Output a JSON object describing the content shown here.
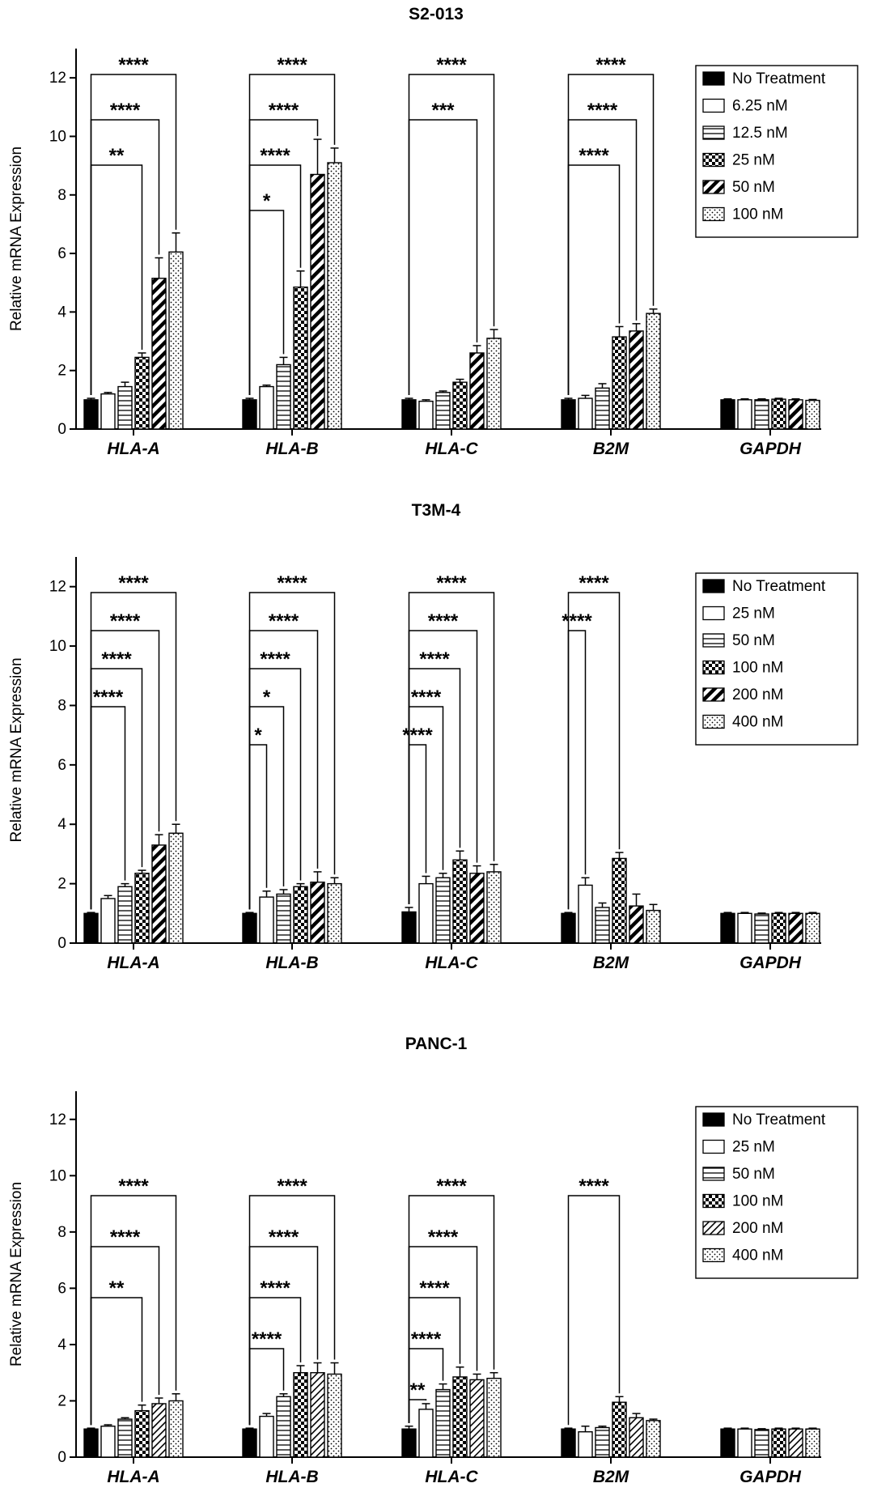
{
  "legend_labels": {
    "s2013": [
      "No Treatment",
      "6.25 nM",
      "12.5 nM",
      "25 nM",
      "50 nM",
      "100 nM"
    ],
    "t3m4": [
      "No Treatment",
      "25 nM",
      "50 nM",
      "100 nM",
      "200 nM",
      "400 nM"
    ],
    "panc1": [
      "No Treatment",
      "25 nM",
      "50 nM",
      "100 nM",
      "200 nM",
      "400 nM"
    ]
  },
  "chart_data": [
    {
      "type": "bar",
      "title": "S2-013",
      "ylabel": "Relative mRNA Expression",
      "xlabel": "",
      "ylim": [
        0,
        13
      ],
      "yticks": [
        0,
        2,
        4,
        6,
        8,
        10,
        12
      ],
      "categories": [
        "HLA-A",
        "HLA-B",
        "HLA-C",
        "B2M",
        "GAPDH"
      ],
      "legend_position": "top-right",
      "series": [
        {
          "name": "No Treatment",
          "values": [
            1.0,
            1.0,
            1.0,
            1.0,
            1.0
          ],
          "errors": [
            0.05,
            0.05,
            0.05,
            0.05,
            0.03
          ]
        },
        {
          "name": "6.25 nM",
          "values": [
            1.2,
            1.45,
            0.95,
            1.05,
            1.0
          ],
          "errors": [
            0.05,
            0.05,
            0.05,
            0.1,
            0.03
          ]
        },
        {
          "name": "12.5 nM",
          "values": [
            1.45,
            2.2,
            1.25,
            1.4,
            1.0
          ],
          "errors": [
            0.15,
            0.25,
            0.05,
            0.15,
            0.03
          ]
        },
        {
          "name": "25 nM",
          "values": [
            2.45,
            4.85,
            1.6,
            3.15,
            1.02
          ],
          "errors": [
            0.15,
            0.55,
            0.1,
            0.35,
            0.03
          ]
        },
        {
          "name": "50 nM",
          "values": [
            5.15,
            8.7,
            2.6,
            3.35,
            1.0
          ],
          "errors": [
            0.7,
            1.2,
            0.25,
            0.25,
            0.03
          ]
        },
        {
          "name": "100 nM",
          "values": [
            6.05,
            9.1,
            3.1,
            3.95,
            0.98
          ],
          "errors": [
            0.65,
            0.5,
            0.3,
            0.15,
            0.03
          ]
        }
      ],
      "significance": [
        {
          "category": "HLA-A",
          "to": "100 nM",
          "label": "****"
        },
        {
          "category": "HLA-A",
          "to": "50 nM",
          "label": "****"
        },
        {
          "category": "HLA-A",
          "to": "25 nM",
          "label": "**"
        },
        {
          "category": "HLA-B",
          "to": "100 nM",
          "label": "****"
        },
        {
          "category": "HLA-B",
          "to": "50 nM",
          "label": "****"
        },
        {
          "category": "HLA-B",
          "to": "25 nM",
          "label": "****"
        },
        {
          "category": "HLA-B",
          "to": "12.5 nM",
          "label": "*"
        },
        {
          "category": "HLA-C",
          "to": "100 nM",
          "label": "****"
        },
        {
          "category": "HLA-C",
          "to": "50 nM",
          "label": "***"
        },
        {
          "category": "B2M",
          "to": "100 nM",
          "label": "****"
        },
        {
          "category": "B2M",
          "to": "50 nM",
          "label": "****"
        },
        {
          "category": "B2M",
          "to": "25 nM",
          "label": "****"
        }
      ]
    },
    {
      "type": "bar",
      "title": "T3M-4",
      "ylabel": "Relative mRNA Expression",
      "xlabel": "",
      "ylim": [
        0,
        13
      ],
      "yticks": [
        0,
        2,
        4,
        6,
        8,
        10,
        12
      ],
      "categories": [
        "HLA-A",
        "HLA-B",
        "HLA-C",
        "B2M",
        "GAPDH"
      ],
      "legend_position": "top-right",
      "series": [
        {
          "name": "No Treatment",
          "values": [
            1.0,
            1.0,
            1.05,
            1.0,
            1.0
          ],
          "errors": [
            0.03,
            0.03,
            0.15,
            0.03,
            0.03
          ]
        },
        {
          "name": "25 nM",
          "values": [
            1.5,
            1.55,
            2.0,
            1.95,
            1.0
          ],
          "errors": [
            0.1,
            0.2,
            0.25,
            0.25,
            0.03
          ]
        },
        {
          "name": "50 nM",
          "values": [
            1.9,
            1.65,
            2.2,
            1.2,
            0.98
          ],
          "errors": [
            0.1,
            0.15,
            0.15,
            0.15,
            0.03
          ]
        },
        {
          "name": "100 nM",
          "values": [
            2.35,
            1.9,
            2.8,
            2.85,
            1.0
          ],
          "errors": [
            0.1,
            0.1,
            0.3,
            0.2,
            0.03
          ]
        },
        {
          "name": "200 nM",
          "values": [
            3.3,
            2.05,
            2.35,
            1.25,
            1.0
          ],
          "errors": [
            0.35,
            0.35,
            0.25,
            0.4,
            0.03
          ]
        },
        {
          "name": "400 nM",
          "values": [
            3.7,
            2.0,
            2.4,
            1.1,
            1.0
          ],
          "errors": [
            0.3,
            0.2,
            0.25,
            0.2,
            0.03
          ]
        }
      ],
      "significance": [
        {
          "category": "HLA-A",
          "to": "400 nM",
          "label": "****"
        },
        {
          "category": "HLA-A",
          "to": "200 nM",
          "label": "****"
        },
        {
          "category": "HLA-A",
          "to": "100 nM",
          "label": "****"
        },
        {
          "category": "HLA-A",
          "to": "50 nM",
          "label": "****"
        },
        {
          "category": "HLA-B",
          "to": "400 nM",
          "label": "****"
        },
        {
          "category": "HLA-B",
          "to": "200 nM",
          "label": "****"
        },
        {
          "category": "HLA-B",
          "to": "100 nM",
          "label": "****"
        },
        {
          "category": "HLA-B",
          "to": "50 nM",
          "label": "*"
        },
        {
          "category": "HLA-B",
          "to": "25 nM",
          "label": "*"
        },
        {
          "category": "HLA-C",
          "to": "400 nM",
          "label": "****"
        },
        {
          "category": "HLA-C",
          "to": "200 nM",
          "label": "****"
        },
        {
          "category": "HLA-C",
          "to": "100 nM",
          "label": "****"
        },
        {
          "category": "HLA-C",
          "to": "50 nM",
          "label": "****"
        },
        {
          "category": "HLA-C",
          "to": "25 nM",
          "label": "****"
        },
        {
          "category": "B2M",
          "to": "100 nM",
          "label": "****"
        },
        {
          "category": "B2M",
          "to": "25 nM",
          "label": "****"
        }
      ]
    },
    {
      "type": "bar",
      "title": "PANC-1",
      "ylabel": "Relative mRNA Expression",
      "xlabel": "",
      "ylim": [
        0,
        13
      ],
      "yticks": [
        0,
        2,
        4,
        6,
        8,
        10,
        12
      ],
      "categories": [
        "HLA-A",
        "HLA-B",
        "HLA-C",
        "B2M",
        "GAPDH"
      ],
      "legend_position": "top-right",
      "series": [
        {
          "name": "No Treatment",
          "values": [
            1.0,
            1.0,
            1.0,
            1.0,
            1.0
          ],
          "errors": [
            0.03,
            0.03,
            0.1,
            0.03,
            0.03
          ]
        },
        {
          "name": "25 nM",
          "values": [
            1.1,
            1.45,
            1.7,
            0.9,
            1.0
          ],
          "errors": [
            0.05,
            0.1,
            0.2,
            0.2,
            0.03
          ]
        },
        {
          "name": "50 nM",
          "values": [
            1.35,
            2.15,
            2.4,
            1.05,
            0.98
          ],
          "errors": [
            0.05,
            0.1,
            0.2,
            0.05,
            0.03
          ]
        },
        {
          "name": "100 nM",
          "values": [
            1.65,
            3.0,
            2.85,
            1.95,
            1.0
          ],
          "errors": [
            0.2,
            0.25,
            0.35,
            0.2,
            0.03
          ]
        },
        {
          "name": "200 nM",
          "values": [
            1.9,
            3.0,
            2.75,
            1.4,
            1.0
          ],
          "errors": [
            0.2,
            0.35,
            0.2,
            0.15,
            0.03
          ]
        },
        {
          "name": "400 nM",
          "values": [
            2.0,
            2.95,
            2.8,
            1.3,
            1.0
          ],
          "errors": [
            0.25,
            0.4,
            0.2,
            0.05,
            0.03
          ]
        }
      ],
      "significance": [
        {
          "category": "HLA-A",
          "to": "400 nM",
          "label": "****"
        },
        {
          "category": "HLA-A",
          "to": "200 nM",
          "label": "****"
        },
        {
          "category": "HLA-A",
          "to": "100 nM",
          "label": "**"
        },
        {
          "category": "HLA-B",
          "to": "400 nM",
          "label": "****"
        },
        {
          "category": "HLA-B",
          "to": "200 nM",
          "label": "****"
        },
        {
          "category": "HLA-B",
          "to": "100 nM",
          "label": "****"
        },
        {
          "category": "HLA-B",
          "to": "50 nM",
          "label": "****"
        },
        {
          "category": "HLA-C",
          "to": "400 nM",
          "label": "****"
        },
        {
          "category": "HLA-C",
          "to": "200 nM",
          "label": "****"
        },
        {
          "category": "HLA-C",
          "to": "100 nM",
          "label": "****"
        },
        {
          "category": "HLA-C",
          "to": "50 nM",
          "label": "****"
        },
        {
          "category": "HLA-C",
          "to": "25 nM",
          "label": "**"
        },
        {
          "category": "B2M",
          "to": "100 nM",
          "label": "****"
        }
      ]
    }
  ]
}
